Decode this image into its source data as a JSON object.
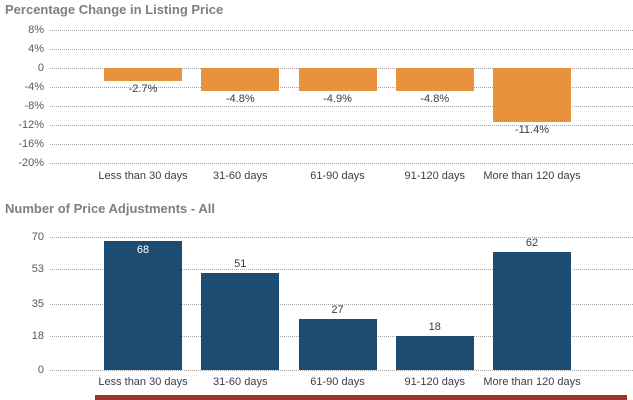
{
  "chart_data": [
    {
      "type": "bar",
      "title": "Percentage Change in Listing Price",
      "categories": [
        "Less than 30 days",
        "31-60 days",
        "61-90 days",
        "91-120 days",
        "More than 120 days"
      ],
      "values": [
        -2.7,
        -4.8,
        -4.9,
        -4.8,
        -11.4
      ],
      "value_labels": [
        "-2.7%",
        "-4.8%",
        "-4.9%",
        "-4.8%",
        "-11.4%"
      ],
      "ytick_labels": [
        "8%",
        "4%",
        "0",
        "-4%",
        "-8%",
        "-12%",
        "-16%",
        "-20%"
      ],
      "ytick_values": [
        8,
        4,
        0,
        -4,
        -8,
        -12,
        -16,
        -20
      ],
      "ylim": [
        8,
        -20
      ],
      "xlabel": "",
      "ylabel": "",
      "grid": "dotted horizontal",
      "legend": "none",
      "bar_color": "#e8923e",
      "label_placement": "below-bar"
    },
    {
      "type": "bar",
      "title": "Number of Price Adjustments - All",
      "categories": [
        "Less than 30 days",
        "31-60 days",
        "61-90 days",
        "91-120 days",
        "More than 120 days"
      ],
      "values": [
        68,
        51,
        27,
        18,
        62
      ],
      "value_labels": [
        "68",
        "51",
        "27",
        "18",
        "62"
      ],
      "ytick_labels": [
        "70",
        "53",
        "35",
        "18",
        "0"
      ],
      "ytick_values": [
        70,
        53,
        35,
        18,
        0
      ],
      "ylim": [
        0,
        70
      ],
      "xlabel": "",
      "ylabel": "",
      "grid": "dotted horizontal",
      "legend": "none",
      "bar_color": "#1c4c72",
      "label_placement": "above-bar-or-inside-when-near-top"
    }
  ],
  "partial_third_chart": {
    "note_color": "#9c352b"
  },
  "colors": {
    "title_gray": "#7f7f7f",
    "tick_gray": "#595959",
    "gridline_gray": "#a6a6a6",
    "orange_bar": "#e8923e",
    "navy_bar": "#1c4c72",
    "dark_red_strip": "#9c352b",
    "label_dark": "#3b3b3b",
    "label_inside_white": "#ffffff",
    "background": "#ffffff"
  }
}
